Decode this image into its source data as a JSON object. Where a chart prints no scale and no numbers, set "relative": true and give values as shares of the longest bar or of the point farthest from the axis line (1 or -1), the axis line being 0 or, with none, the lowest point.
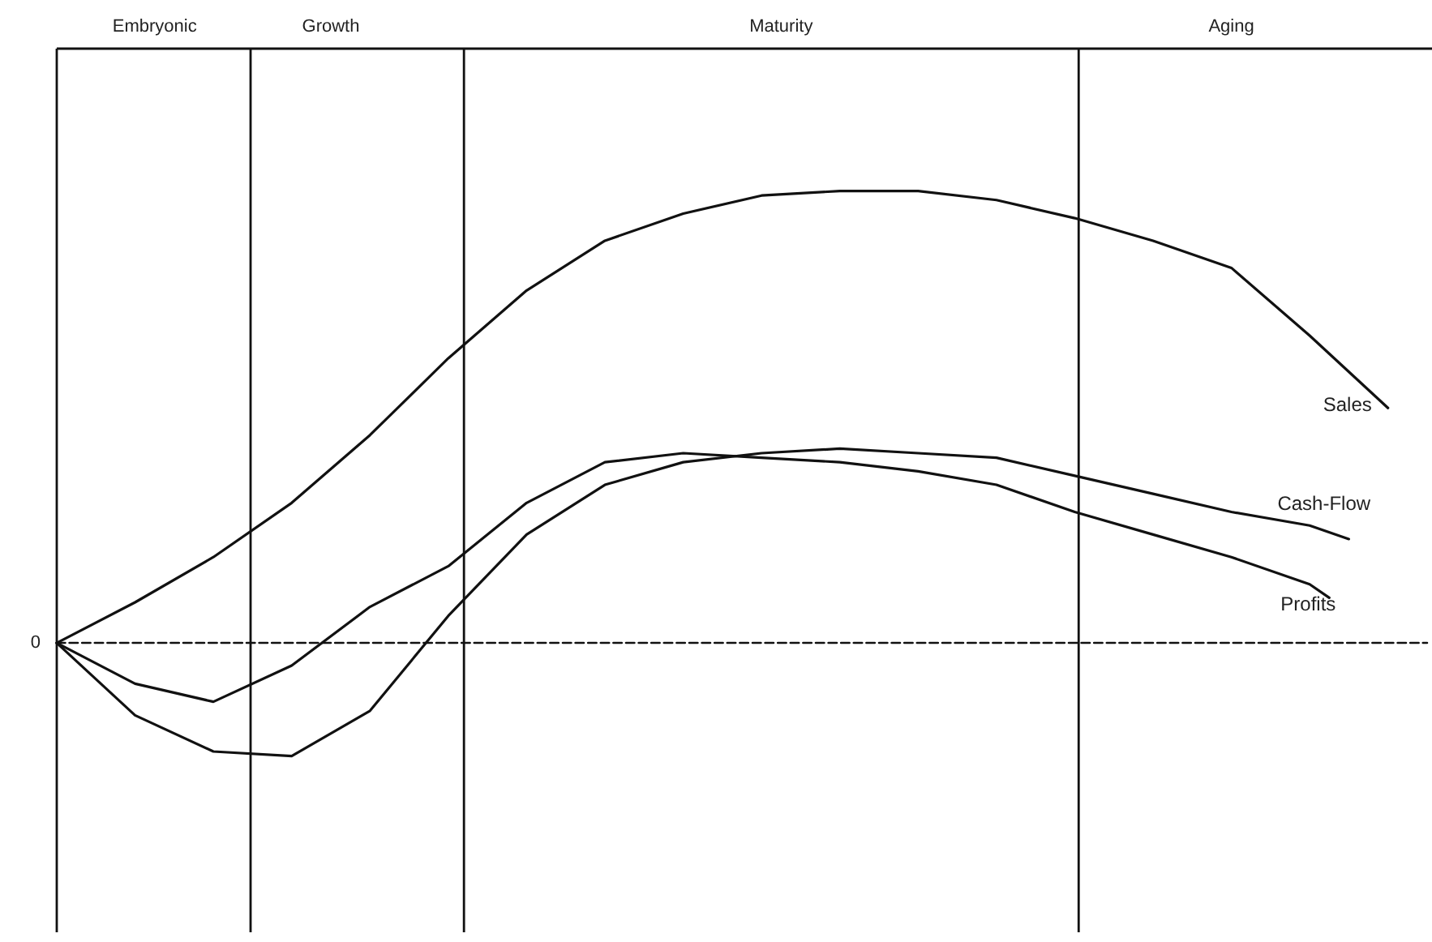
{
  "chart_data": {
    "type": "line",
    "relative": true,
    "grid": false,
    "legend": false,
    "marker": "none",
    "line_style": "solid",
    "categories": [
      null,
      null,
      null,
      null,
      null,
      "Embryonic",
      null,
      null,
      null,
      null,
      null,
      null,
      null,
      null,
      "Growth",
      null,
      null,
      null,
      null,
      null,
      null,
      null,
      null,
      null,
      null,
      null,
      null,
      null,
      null,
      null,
      null,
      null,
      null,
      null,
      null,
      null,
      null,
      "Maturity",
      null,
      null,
      null,
      null,
      null,
      null,
      null,
      null,
      null,
      null,
      null,
      null,
      null,
      null,
      null,
      null,
      null,
      null,
      null,
      null,
      null,
      null,
      "Aging",
      null,
      null,
      null,
      null,
      null,
      null,
      null,
      null,
      null,
      null
    ],
    "series": [
      {
        "name": "Sales",
        "color": "#111111",
        "values": [
          0,
          null,
          null,
          null,
          0.09,
          null,
          null,
          null,
          0.19,
          null,
          null,
          null,
          0.31,
          null,
          null,
          null,
          0.46,
          null,
          null,
          null,
          0.63,
          null,
          null,
          null,
          0.78,
          null,
          null,
          null,
          0.89,
          null,
          null,
          null,
          0.95,
          null,
          null,
          null,
          0.99,
          null,
          null,
          null,
          1.0,
          null,
          null,
          null,
          1.0,
          null,
          null,
          null,
          0.98,
          null,
          null,
          null,
          0.94,
          null,
          null,
          null,
          0.89,
          null,
          null,
          null,
          0.83,
          null,
          null,
          null,
          0.68,
          null,
          null,
          null,
          0.52,
          null,
          null
        ]
      },
      {
        "name": "Cash-Flow",
        "color": "#111111",
        "values": [
          0,
          null,
          null,
          null,
          -0.16,
          null,
          null,
          null,
          -0.24,
          null,
          null,
          null,
          -0.25,
          null,
          null,
          null,
          -0.15,
          null,
          null,
          null,
          0.06,
          null,
          null,
          null,
          0.24,
          null,
          null,
          null,
          0.35,
          null,
          null,
          null,
          0.4,
          null,
          null,
          null,
          0.42,
          null,
          null,
          null,
          0.43,
          null,
          null,
          null,
          0.42,
          null,
          null,
          null,
          0.41,
          null,
          null,
          null,
          0.37,
          null,
          null,
          null,
          0.33,
          null,
          null,
          null,
          0.29,
          null,
          null,
          null,
          0.26,
          null,
          0.23,
          null,
          null,
          null,
          null
        ]
      },
      {
        "name": "Profits",
        "color": "#111111",
        "values": [
          0,
          null,
          null,
          null,
          -0.09,
          null,
          null,
          null,
          -0.13,
          null,
          null,
          null,
          -0.05,
          null,
          null,
          null,
          0.08,
          null,
          null,
          null,
          0.17,
          null,
          null,
          null,
          0.31,
          null,
          null,
          null,
          0.4,
          null,
          null,
          null,
          0.42,
          null,
          null,
          null,
          0.41,
          null,
          null,
          null,
          0.4,
          null,
          null,
          null,
          0.38,
          null,
          null,
          null,
          0.35,
          null,
          null,
          null,
          0.29,
          null,
          null,
          null,
          0.24,
          null,
          null,
          null,
          0.19,
          null,
          null,
          null,
          0.13,
          0.1,
          null,
          null,
          null,
          null,
          null
        ]
      }
    ],
    "ref_lines": [
      {
        "axis": "y",
        "value": 0,
        "label": "0",
        "line_style": "dashed"
      }
    ]
  }
}
